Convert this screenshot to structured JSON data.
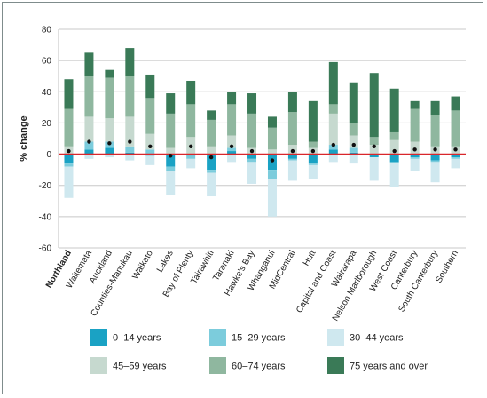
{
  "chart_data": {
    "type": "bar",
    "stacked": true,
    "ylabel": "% change",
    "ylim": [
      -60,
      80
    ],
    "yticks": [
      -60,
      -40,
      -20,
      0,
      20,
      40,
      60,
      80
    ],
    "grid": true,
    "zero_line_color": "#d9262b",
    "legend_position": "bottom",
    "categories": [
      "Northland",
      "Waitemata",
      "Auckland",
      "Counties-Manukau",
      "Waikato",
      "Lakes",
      "Bay of Plenty",
      "Tairawhiti",
      "Taranaki",
      "Hawke's Bay",
      "Whanganui",
      "MidCentral",
      "Hutt",
      "Capital and Coast",
      "Wairarapa",
      "Nelson Marlborough",
      "West Coast",
      "Canterbury",
      "South Canterbury",
      "Southern"
    ],
    "bold_categories": [
      "Northland"
    ],
    "series": [
      {
        "name": "0–14 years",
        "color": "#1aa2c4",
        "values": [
          -6,
          3,
          4,
          1,
          -1,
          -8,
          -1,
          -10,
          2,
          -3,
          -10,
          -3,
          -6,
          3,
          1,
          -2,
          -5,
          -2,
          -4,
          -2
        ]
      },
      {
        "name": "15–29 years",
        "color": "#7cccdc",
        "values": [
          -2,
          5,
          4,
          4,
          3,
          -3,
          -2,
          -2,
          2,
          -2,
          -6,
          -1,
          -1,
          3,
          3,
          0,
          -1,
          -1,
          -1,
          -1
        ]
      },
      {
        "name": "30–44 years",
        "color": "#cfe8ef",
        "values": [
          -20,
          -3,
          -2,
          -4,
          -6,
          -15,
          -6,
          -15,
          -5,
          -14,
          -24,
          -13,
          -9,
          -5,
          -6,
          -15,
          -15,
          -8,
          -13,
          -6
        ]
      },
      {
        "name": "45–59 years",
        "color": "#c6d9cf",
        "values": [
          5,
          16,
          15,
          19,
          10,
          4,
          11,
          5,
          8,
          4,
          3,
          6,
          4,
          20,
          8,
          6,
          9,
          8,
          5,
          5
        ]
      },
      {
        "name": "60–74 years",
        "color": "#8fb79f",
        "values": [
          24,
          26,
          26,
          26,
          23,
          22,
          21,
          17,
          20,
          22,
          14,
          21,
          4,
          6,
          8,
          5,
          5,
          21,
          20,
          23
        ]
      },
      {
        "name": "75 years and over",
        "color": "#3a7a57",
        "values": [
          19,
          15,
          5,
          18,
          15,
          13,
          15,
          6,
          8,
          13,
          7,
          13,
          26,
          27,
          26,
          41,
          28,
          5,
          9,
          9
        ]
      }
    ],
    "net_change": [
      2,
      8,
      7,
      8,
      5,
      -1,
      5,
      -2,
      5,
      2,
      -4,
      2,
      2,
      6,
      6,
      5,
      2,
      3,
      3,
      3
    ]
  }
}
